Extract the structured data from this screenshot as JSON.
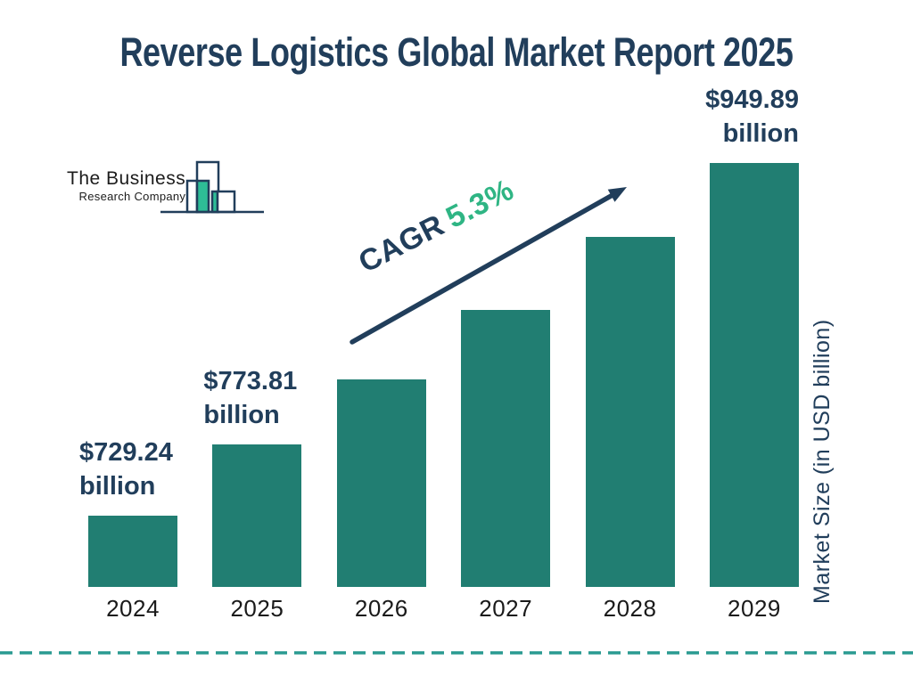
{
  "title": "Reverse Logistics Global Market Report 2025",
  "logo": {
    "name_line1": "The Business",
    "name_line2": "Research Company"
  },
  "cagr": {
    "label": "CAGR",
    "value": "5.3%"
  },
  "y_axis_label": "Market Size (in USD billion)",
  "chart_data": {
    "type": "bar",
    "title": "Reverse Logistics Global Market Report 2025",
    "categories": [
      "2024",
      "2025",
      "2026",
      "2027",
      "2028",
      "2029"
    ],
    "values": [
      729.24,
      773.81,
      814.8,
      858.0,
      903.5,
      949.89
    ],
    "unit": "USD billion",
    "bar_labels": [
      {
        "line1": "$729.24",
        "line2": "billion",
        "align": "left"
      },
      {
        "line1": "$773.81",
        "line2": "billion",
        "align": "left"
      },
      null,
      null,
      null,
      {
        "line1": "$949.89",
        "line2": "billion",
        "align": "right"
      }
    ],
    "annotation": "CAGR 5.3%",
    "xlabel": "",
    "ylabel": "Market Size (in USD billion)",
    "ylim": [
      684.7,
      960
    ],
    "grid": false,
    "legend": "none"
  },
  "colors": {
    "bar": "#217E72",
    "navy": "#213E5B",
    "accent_green": "#2FB584",
    "logo_green": "#2EBD96",
    "dashed_line": "#2A9A91",
    "axis_text": "#1A1A1A"
  }
}
